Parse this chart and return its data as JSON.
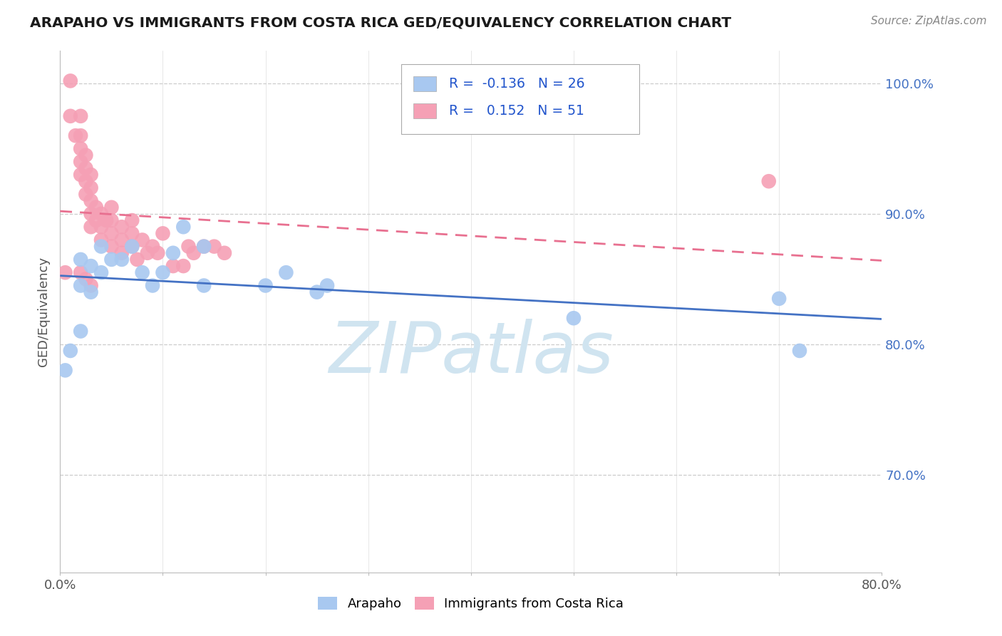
{
  "title": "ARAPAHO VS IMMIGRANTS FROM COSTA RICA GED/EQUIVALENCY CORRELATION CHART",
  "source": "Source: ZipAtlas.com",
  "ylabel": "GED/Equivalency",
  "xlim": [
    0.0,
    0.8
  ],
  "ylim": [
    0.625,
    1.025
  ],
  "ytick_labels": [
    "70.0%",
    "80.0%",
    "90.0%",
    "100.0%"
  ],
  "ytick_values": [
    0.7,
    0.8,
    0.9,
    1.0
  ],
  "xtick_labels": [
    "0.0%",
    "",
    "",
    "",
    "",
    "",
    "",
    "",
    "80.0%"
  ],
  "xtick_values": [
    0.0,
    0.1,
    0.2,
    0.3,
    0.4,
    0.5,
    0.6,
    0.7,
    0.8
  ],
  "arapaho_R": "-0.136",
  "arapaho_N": "26",
  "costa_rica_R": "0.152",
  "costa_rica_N": "51",
  "arapaho_color": "#A8C8F0",
  "costa_rica_color": "#F5A0B5",
  "arapaho_line_color": "#4472C4",
  "costa_rica_line_color": "#E87090",
  "legend_R_color": "#2255CC",
  "arapaho_x": [
    0.005,
    0.01,
    0.02,
    0.02,
    0.02,
    0.03,
    0.03,
    0.04,
    0.04,
    0.05,
    0.06,
    0.07,
    0.08,
    0.09,
    0.1,
    0.11,
    0.12,
    0.14,
    0.14,
    0.2,
    0.22,
    0.25,
    0.26,
    0.5,
    0.7,
    0.72
  ],
  "arapaho_y": [
    0.78,
    0.795,
    0.81,
    0.845,
    0.865,
    0.84,
    0.86,
    0.855,
    0.875,
    0.865,
    0.865,
    0.875,
    0.855,
    0.845,
    0.855,
    0.87,
    0.89,
    0.875,
    0.845,
    0.845,
    0.855,
    0.84,
    0.845,
    0.82,
    0.835,
    0.795
  ],
  "costa_rica_x": [
    0.005,
    0.01,
    0.01,
    0.015,
    0.02,
    0.02,
    0.02,
    0.02,
    0.02,
    0.025,
    0.025,
    0.025,
    0.025,
    0.03,
    0.03,
    0.03,
    0.03,
    0.03,
    0.035,
    0.035,
    0.04,
    0.04,
    0.04,
    0.045,
    0.05,
    0.05,
    0.05,
    0.05,
    0.06,
    0.06,
    0.06,
    0.07,
    0.07,
    0.07,
    0.075,
    0.08,
    0.085,
    0.09,
    0.095,
    0.1,
    0.11,
    0.12,
    0.125,
    0.13,
    0.14,
    0.15,
    0.16,
    0.02,
    0.025,
    0.03,
    0.69
  ],
  "costa_rica_y": [
    0.855,
    1.002,
    0.975,
    0.96,
    0.975,
    0.96,
    0.95,
    0.94,
    0.93,
    0.945,
    0.935,
    0.925,
    0.915,
    0.93,
    0.92,
    0.91,
    0.9,
    0.89,
    0.905,
    0.895,
    0.9,
    0.89,
    0.88,
    0.895,
    0.905,
    0.895,
    0.885,
    0.875,
    0.89,
    0.88,
    0.87,
    0.895,
    0.885,
    0.875,
    0.865,
    0.88,
    0.87,
    0.875,
    0.87,
    0.885,
    0.86,
    0.86,
    0.875,
    0.87,
    0.875,
    0.875,
    0.87,
    0.855,
    0.85,
    0.845,
    0.925
  ],
  "background_color": "#FFFFFF",
  "grid_color": "#CCCCCC",
  "watermark": "ZIPatlas",
  "watermark_color": "#D0E4F0"
}
